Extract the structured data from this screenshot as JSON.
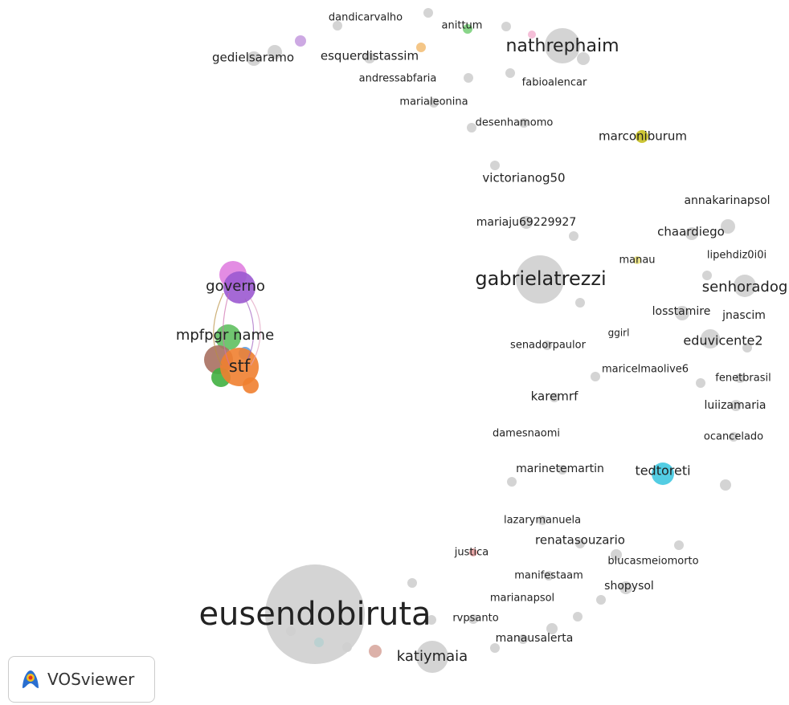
{
  "nodes": [
    {
      "label": "dandicarvalho"
    },
    {
      "label": "anittum"
    },
    {
      "label": "gedielsaramo"
    },
    {
      "label": "esquerdistassim"
    },
    {
      "label": "nathrephaim"
    },
    {
      "label": "andressabfaria"
    },
    {
      "label": "fabioalencar"
    },
    {
      "label": "marialeonina"
    },
    {
      "label": "desenhamomo"
    },
    {
      "label": "marconiburum"
    },
    {
      "label": "victorianog50"
    },
    {
      "label": "annakarinapsol"
    },
    {
      "label": "mariaju69229927"
    },
    {
      "label": "chaardiego"
    },
    {
      "label": "manau"
    },
    {
      "label": "lipehdiz0i0i"
    },
    {
      "label": "gabrielatrezzi"
    },
    {
      "label": "senhoradog"
    },
    {
      "label": "governo"
    },
    {
      "label": "losstamire"
    },
    {
      "label": "jnascim"
    },
    {
      "label": "mpfpgr name"
    },
    {
      "label": "ggirl"
    },
    {
      "label": "senadorpaulor"
    },
    {
      "label": "eduvicente2"
    },
    {
      "label": "stf"
    },
    {
      "label": "maricelmaolive6"
    },
    {
      "label": "fenetbrasil"
    },
    {
      "label": "karemrf"
    },
    {
      "label": "luiizamaria"
    },
    {
      "label": "damesnaomi"
    },
    {
      "label": "ocancelado"
    },
    {
      "label": "marinetemartin"
    },
    {
      "label": "tedtoreti"
    },
    {
      "label": "lazarymanuela"
    },
    {
      "label": "renatasouzario"
    },
    {
      "label": "justica"
    },
    {
      "label": "blucasmeiomorto"
    },
    {
      "label": "manifestaam"
    },
    {
      "label": "shopysol"
    },
    {
      "label": "marianapsol"
    },
    {
      "label": "eusendobiruta"
    },
    {
      "label": "rvpsanto"
    },
    {
      "label": "manausalerta"
    },
    {
      "label": "katiymaia"
    }
  ],
  "logo": {
    "label": "VOSviewer"
  }
}
